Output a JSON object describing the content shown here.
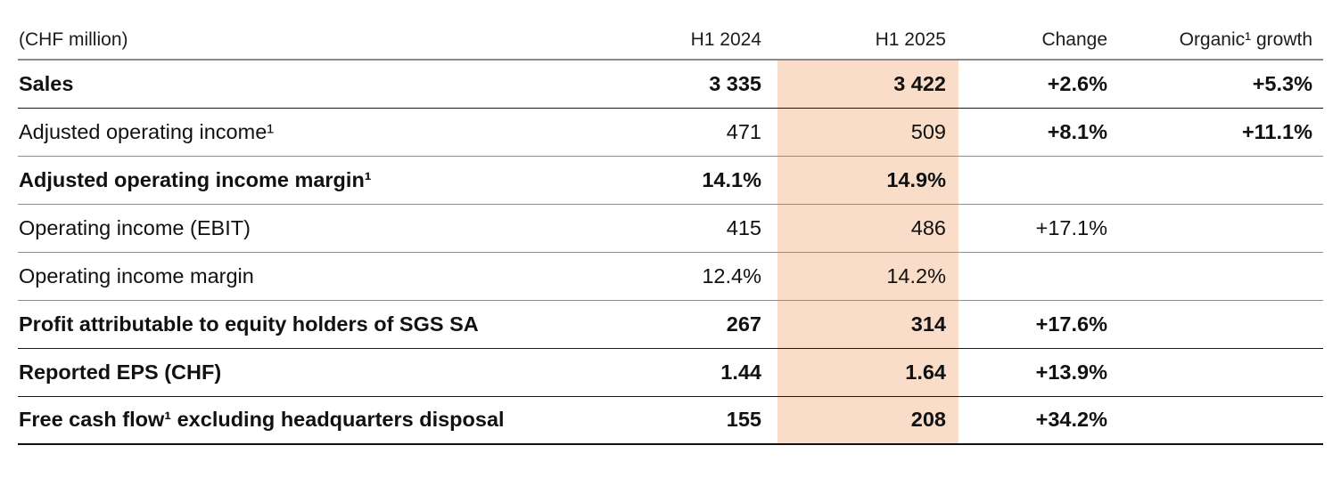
{
  "table": {
    "unit_label": "(CHF million)",
    "columns": [
      "H1 2024",
      "H1 2025",
      "Change",
      "Organic¹ growth"
    ],
    "highlight_color": "#f9ddc9",
    "rows": [
      {
        "label": "Sales",
        "h1_2024": "3 335",
        "h1_2025": "3 422",
        "change": "+2.6%",
        "organic": "+5.3%"
      },
      {
        "label": "Adjusted operating income¹",
        "h1_2024": "471",
        "h1_2025": "509",
        "change": "+8.1%",
        "organic": "+11.1%"
      },
      {
        "label": "Adjusted operating income margin¹",
        "h1_2024": "14.1%",
        "h1_2025": "14.9%",
        "change": "",
        "organic": ""
      },
      {
        "label": "Operating income (EBIT)",
        "h1_2024": "415",
        "h1_2025": "486",
        "change": "+17.1%",
        "organic": ""
      },
      {
        "label": "Operating income margin",
        "h1_2024": "12.4%",
        "h1_2025": "14.2%",
        "change": "",
        "organic": ""
      },
      {
        "label": "Profit attributable to equity holders of SGS SA",
        "h1_2024": "267",
        "h1_2025": "314",
        "change": "+17.6%",
        "organic": ""
      },
      {
        "label": "Reported EPS (CHF)",
        "h1_2024": "1.44",
        "h1_2025": "1.64",
        "change": "+13.9%",
        "organic": ""
      },
      {
        "label": "Free cash flow¹ excluding headquarters disposal",
        "h1_2024": "155",
        "h1_2025": "208",
        "change": "+34.2%",
        "organic": ""
      }
    ]
  }
}
